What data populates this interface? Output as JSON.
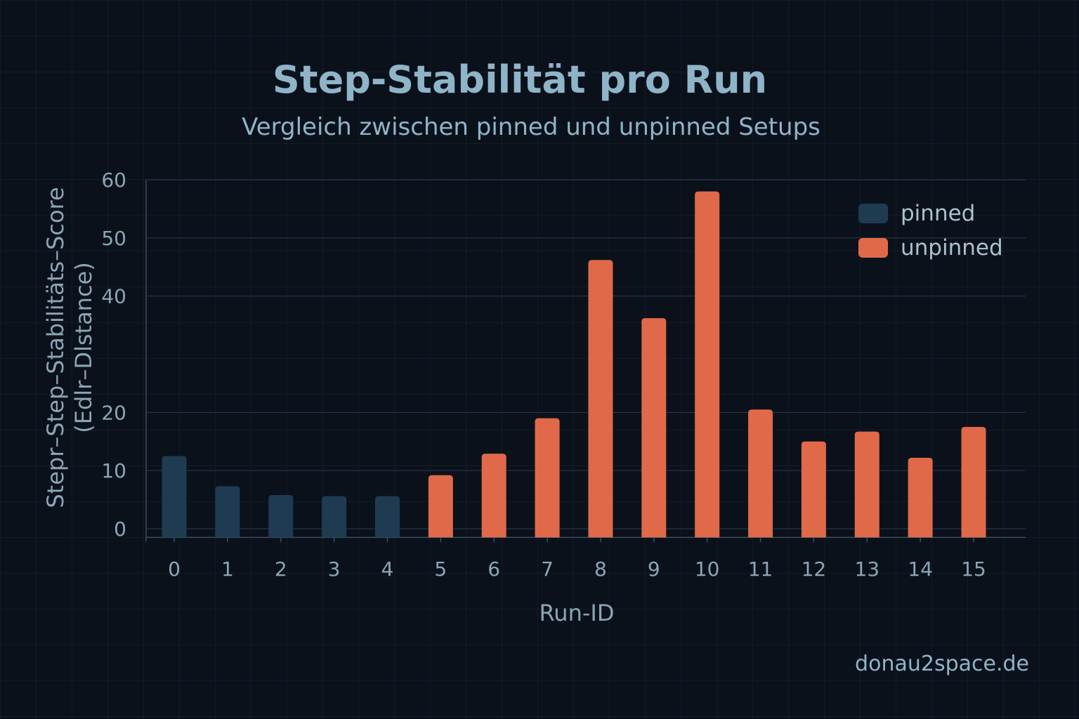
{
  "chart_data": {
    "type": "bar",
    "title": "Step-Stabilität pro Run",
    "subtitle": "Vergleich zwischen pinned und unpinned Setups",
    "xlabel": "Run-ID",
    "ylabel_lines": [
      "Stepr–Step–Stabilitäts–Score",
      "(Edlr–Dlstance)"
    ],
    "categories": [
      "0",
      "1",
      "2",
      "3",
      "4",
      "5",
      "6",
      "7",
      "8",
      "9",
      "10",
      "11",
      "12",
      "13",
      "14",
      "15"
    ],
    "series": [
      {
        "name": "pinned",
        "color": "#1f3b52",
        "values": [
          12.5,
          7.3,
          5.8,
          5.6,
          5.6,
          null,
          null,
          null,
          null,
          null,
          null,
          null,
          null,
          null,
          null,
          null
        ]
      },
      {
        "name": "unpinned",
        "color": "#e0694a",
        "values": [
          null,
          null,
          null,
          null,
          null,
          9.2,
          12.9,
          19.0,
          46.2,
          36.2,
          58.0,
          20.5,
          15.0,
          16.7,
          12.2,
          17.5
        ]
      }
    ],
    "yticks": [
      0,
      10,
      20,
      40,
      50,
      60
    ],
    "ylim": [
      -1.5,
      60
    ],
    "grid": true,
    "legend": "top-right"
  },
  "watermark": "donau2space.de"
}
